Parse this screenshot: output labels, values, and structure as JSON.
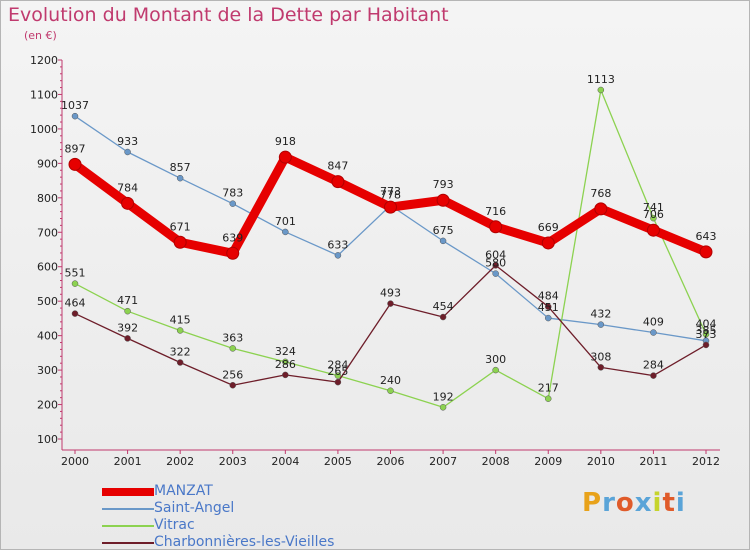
{
  "title": "Evolution du Montant de la Dette par Habitant",
  "subtitle": "(en €)",
  "logo": {
    "text": "Proxiti",
    "letter_colors": [
      "#e8a21a",
      "#5aa4d8",
      "#e05b2a",
      "#5aa4d8",
      "#c6d42c",
      "#e05b2a",
      "#5aa4d8"
    ]
  },
  "chart_data": {
    "type": "line",
    "x": [
      2000,
      2001,
      2002,
      2003,
      2004,
      2005,
      2006,
      2007,
      2008,
      2009,
      2010,
      2011,
      2012
    ],
    "ylim": [
      100,
      1200
    ],
    "yticks": [
      100,
      200,
      300,
      400,
      500,
      600,
      700,
      800,
      900,
      1000,
      1100,
      1200
    ],
    "grid": false,
    "legend_position": "bottom",
    "series": [
      {
        "name": "MANZAT",
        "color": "#e60000",
        "values": [
          897,
          784,
          671,
          639,
          918,
          847,
          773,
          793,
          716,
          669,
          768,
          706,
          643
        ],
        "labels": [
          "897",
          "784",
          "671",
          "639",
          "918",
          "847",
          "773",
          "793",
          "716",
          "669",
          "768",
          "706",
          "643"
        ]
      },
      {
        "name": "Saint-Angel",
        "color": "#6a98c8",
        "values": [
          1037,
          933,
          857,
          783,
          701,
          633,
          778,
          675,
          580,
          451,
          432,
          409,
          385
        ],
        "labels": [
          "1037",
          "933",
          "857",
          "783",
          "701",
          "633",
          "778",
          "675",
          "580",
          "451",
          "432",
          "409",
          "385"
        ]
      },
      {
        "name": "Vitrac",
        "color": "#8cd250",
        "values": [
          551,
          471,
          415,
          363,
          324,
          284,
          240,
          192,
          300,
          217,
          1113,
          741,
          404
        ],
        "labels": [
          "551",
          "471",
          "415",
          "363",
          "324",
          "284",
          "240",
          "192",
          "300",
          "217",
          "1113",
          "741",
          "404"
        ]
      },
      {
        "name": "Charbonnières-les-Vieilles",
        "color": "#6e1e2a",
        "values": [
          464,
          392,
          322,
          256,
          286,
          265,
          493,
          454,
          604,
          484,
          308,
          284,
          373
        ],
        "labels": [
          "464",
          "392",
          "322",
          "256",
          "286",
          "265",
          "493",
          "454",
          "604",
          "484",
          "308",
          "284",
          "373"
        ]
      }
    ]
  }
}
